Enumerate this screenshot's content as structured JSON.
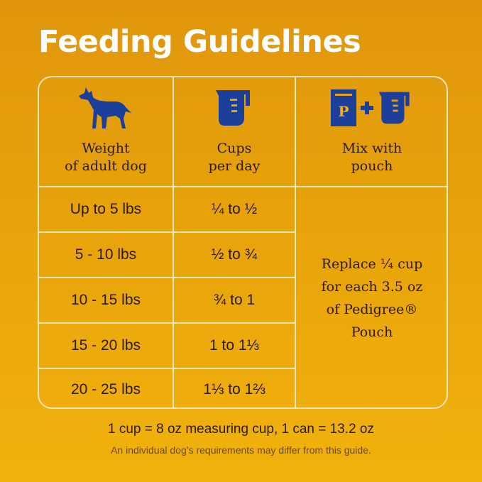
{
  "title": "Feeding Guidelines",
  "headers": [
    {
      "line1": "Weight",
      "line2": "of adult dog",
      "icon": "dog-icon"
    },
    {
      "line1": "Cups",
      "line2": "per day",
      "icon": "measuring-cup-icon"
    },
    {
      "line1": "Mix with",
      "line2": "pouch",
      "icon": "pouch-plus-cup-icon"
    }
  ],
  "rows": [
    {
      "weight": "Up to 5 lbs",
      "cups": "¼ to ½"
    },
    {
      "weight": "5 - 10 lbs",
      "cups": "½ to ¾"
    },
    {
      "weight": "10 - 15 lbs",
      "cups": "¾ to 1"
    },
    {
      "weight": "15 - 20 lbs",
      "cups": "1 to 1⅓"
    },
    {
      "weight": "20 - 25 lbs",
      "cups": "1⅓ to 1⅔"
    }
  ],
  "pouch_note": {
    "l1": "Replace ¼ cup",
    "l2": "for each 3.5 oz",
    "l3": "of Pedigree®",
    "l4": "Pouch"
  },
  "footer": "1 cup = 8 oz measuring cup, 1 can = 13.2 oz",
  "disclaimer": "An individual dog’s requirements may differ from this guide.",
  "colors": {
    "icon_blue": "#1d3f9c",
    "line": "#fbe6b8",
    "pouch_letter": "P"
  }
}
